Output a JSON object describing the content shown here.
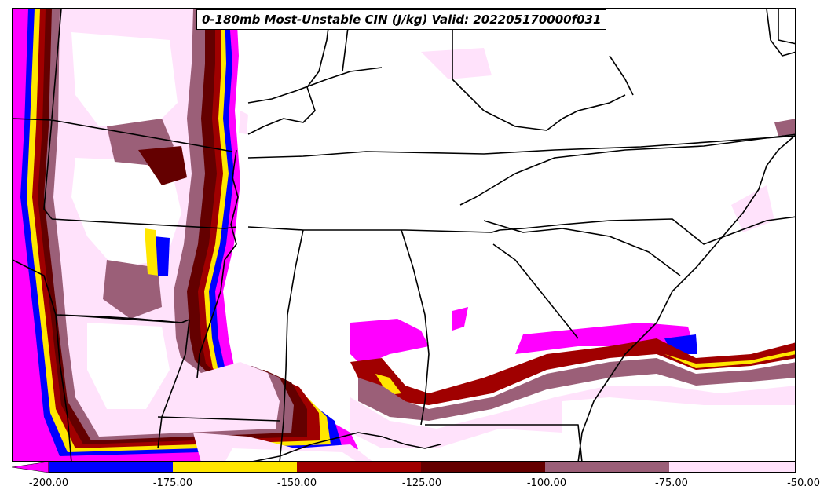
{
  "title": "0-180mb Most-Unstable CIN (J/kg) Valid: 202205170000f031",
  "colorbar": {
    "ticks": [
      "-200.00",
      "-175.00",
      "-150.00",
      "-125.00",
      "-100.00",
      "-75.00",
      "-50.00"
    ],
    "colors": {
      "below_min": "#ff00ff",
      "bin_1": "#0000ff",
      "bin_2": "#ffe600",
      "bin_3": "#a00000",
      "bin_4": "#640000",
      "bin_5": "#9b5f78",
      "bin_6": "#ffe2fb"
    }
  }
}
